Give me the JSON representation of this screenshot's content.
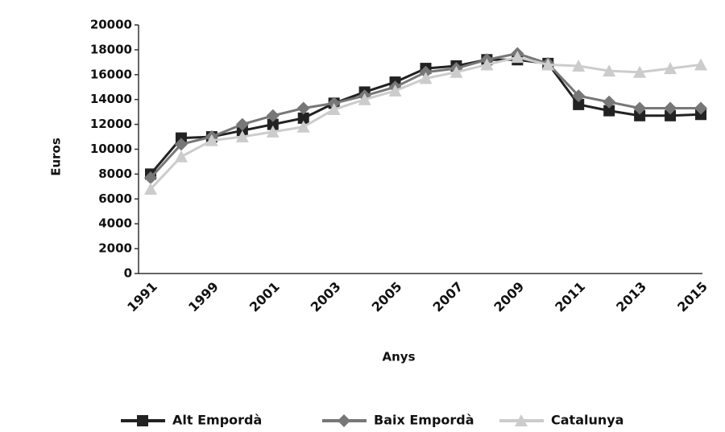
{
  "chart_data": {
    "type": "line",
    "x_label": "Anys",
    "y_label": "Euros",
    "categories": [
      "1991",
      null,
      "1999",
      null,
      "2001",
      null,
      "2003",
      null,
      "2005",
      null,
      "2007",
      null,
      "2009",
      null,
      "2011",
      null,
      "2013",
      null,
      "2015"
    ],
    "series": [
      {
        "name": "Alt Empordà",
        "color": "#222222",
        "marker": "square",
        "values": [
          8000,
          10900,
          11000,
          11500,
          12000,
          12500,
          13700,
          14600,
          15400,
          16500,
          16700,
          17200,
          17200,
          16900,
          13600,
          13100,
          12700,
          12700,
          12800
        ]
      },
      {
        "name": "Baix Empordà",
        "color": "#777777",
        "marker": "diamond",
        "values": [
          7700,
          10400,
          11000,
          12000,
          12700,
          13300,
          13700,
          14300,
          15000,
          16200,
          16500,
          17200,
          17700,
          16900,
          14300,
          13800,
          13300,
          13300,
          13300
        ]
      },
      {
        "name": "Catalunya",
        "color": "#cccccc",
        "marker": "triangle",
        "values": [
          6800,
          9400,
          10700,
          11000,
          11400,
          11800,
          13200,
          14000,
          14700,
          15700,
          16200,
          16800,
          17400,
          16800,
          16700,
          16300,
          16200,
          16500,
          16800
        ]
      }
    ],
    "ylim": [
      0,
      20000
    ],
    "yticks": [
      0,
      2000,
      4000,
      6000,
      8000,
      10000,
      12000,
      14000,
      16000,
      18000,
      20000
    ],
    "grid": false,
    "legend": "bottom"
  }
}
